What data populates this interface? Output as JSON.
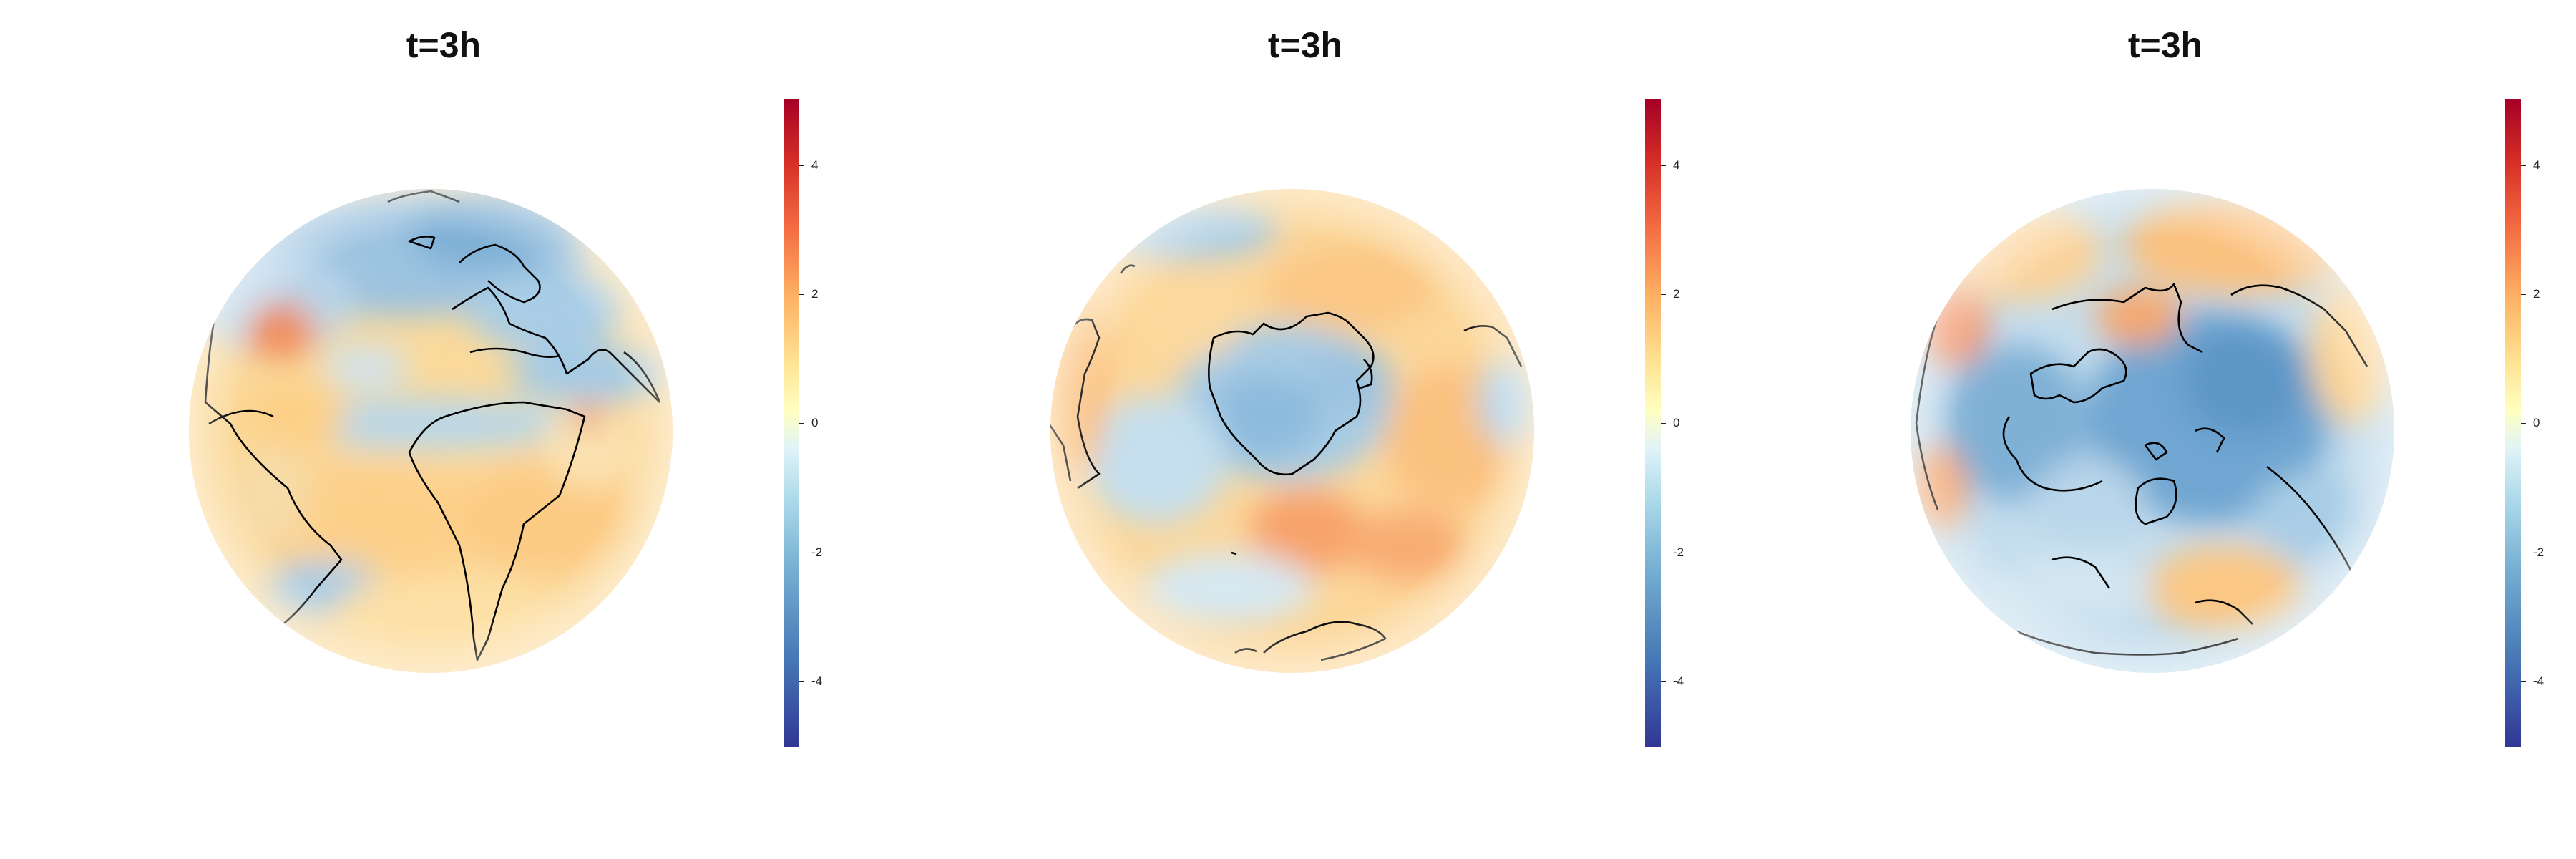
{
  "panels": [
    {
      "title": "t=3h",
      "view": "atlantic-africa-view"
    },
    {
      "title": "t=3h",
      "view": "south-pole-view"
    },
    {
      "title": "t=3h",
      "view": "north-pole-view"
    }
  ],
  "colorbar": {
    "range": [
      -5,
      5
    ],
    "ticks": [
      "4",
      "2",
      "0",
      "-2",
      "-4"
    ],
    "colormap": "RdYlBu_r",
    "colors": [
      "#313695",
      "#4575b4",
      "#74add1",
      "#abd9e9",
      "#e0f3f8",
      "#ffffbf",
      "#fee090",
      "#fdae61",
      "#f46d43",
      "#d73027",
      "#a50026"
    ]
  },
  "colors": {
    "coastline": "#000000",
    "neutral": "#f7f4ee"
  }
}
